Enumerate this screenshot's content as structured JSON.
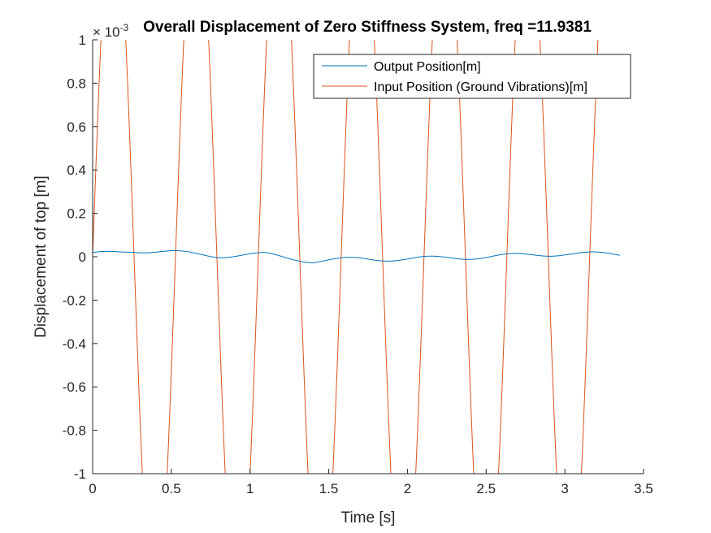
{
  "chart_data": {
    "type": "line",
    "title": "Overall Displacement of Zero Stiffness System, freq =11.9381",
    "xlabel": "Time [s]",
    "ylabel": "Displacement of top [m]",
    "xlim": [
      0,
      3.5
    ],
    "ylim": [
      -1,
      1
    ],
    "y_multiplier_label": "× 10^-3",
    "y_multiplier_base": "× 10",
    "y_multiplier_exp": "-3",
    "x_ticks": [
      0,
      0.5,
      1,
      1.5,
      2,
      2.5,
      3,
      3.5
    ],
    "x_tick_labels": [
      "0",
      "0.5",
      "1",
      "1.5",
      "2",
      "2.5",
      "3",
      "3.5"
    ],
    "y_ticks": [
      -1,
      -0.8,
      -0.6,
      -0.4,
      -0.2,
      0,
      0.2,
      0.4,
      0.6,
      0.8,
      1
    ],
    "y_tick_labels": [
      "-1",
      "-0.8",
      "-0.6",
      "-0.4",
      "-0.2",
      "0",
      "0.2",
      "0.4",
      "0.6",
      "0.8",
      "1"
    ],
    "grid": false,
    "legend_position": "top-right",
    "x_end": 3.35,
    "series": [
      {
        "name": "Output Position[m]",
        "color": "#0072BD",
        "kind": "small-response",
        "ripple_amplitude": 0.01,
        "drift": [
          [
            0,
            0.01
          ],
          [
            0.25,
            0.03
          ],
          [
            0.5,
            0.02
          ],
          [
            0.8,
            0.005
          ],
          [
            1.1,
            0.01
          ],
          [
            1.4,
            -0.02
          ],
          [
            1.7,
            -0.01
          ],
          [
            2.0,
            -0.01
          ],
          [
            2.5,
            0.0
          ],
          [
            3.0,
            0.015
          ],
          [
            3.35,
            0.01
          ]
        ]
      },
      {
        "name": "Input Position (Ground Vibrations)[m]",
        "color": "#D95319",
        "kind": "ground-vibration",
        "frequency_rad_s": 11.9381,
        "peak_value": 1.0,
        "clipped_at_axis_limits": true
      }
    ]
  }
}
